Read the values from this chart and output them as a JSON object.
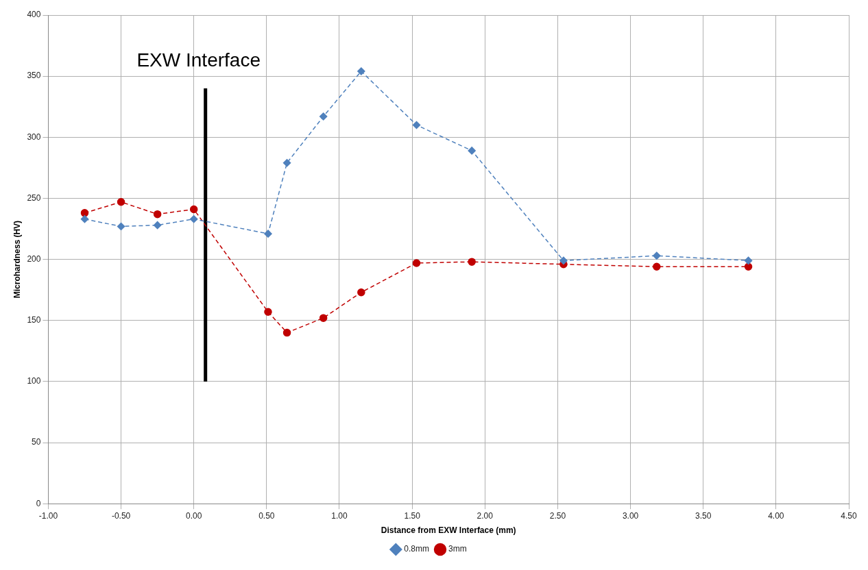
{
  "chart_data": {
    "type": "line",
    "xlabel": "Distance from EXW Interface (mm)",
    "ylabel": "Microhardness (HV)",
    "x": [
      -0.75,
      -0.5,
      -0.25,
      0,
      0.51,
      0.64,
      0.89,
      1.15,
      1.53,
      1.91,
      2.54,
      3.18,
      3.81
    ],
    "series": [
      {
        "name": "0.8mm",
        "color": "#4f81bd",
        "marker": "diamond",
        "line_style": "dashed",
        "values": [
          233,
          227,
          228,
          233,
          221,
          279,
          317,
          354,
          310,
          289,
          199,
          203,
          199
        ]
      },
      {
        "name": "3mm",
        "color": "#c00000",
        "marker": "circle",
        "line_style": "dashed",
        "values": [
          238,
          247,
          237,
          241,
          157,
          140,
          152,
          173,
          197,
          198,
          196,
          194,
          194
        ]
      },
      {
        "color": "#000000",
        "marker": "none",
        "line_style": "solid",
        "x": [
          0.08,
          0.08
        ],
        "values": [
          100,
          340
        ]
      }
    ],
    "annotations": [
      "EXW Interface"
    ],
    "xlim": [
      -1,
      4.5
    ],
    "xticks": [
      {
        "value": -1,
        "label": "-1.00"
      },
      {
        "value": -0.5,
        "label": "-0.50"
      },
      {
        "value": 0,
        "label": "0.00"
      },
      {
        "value": 0.5,
        "label": "0.50"
      },
      {
        "value": 1,
        "label": "1.00"
      },
      {
        "value": 1.5,
        "label": "1.50"
      },
      {
        "value": 2,
        "label": "2.00"
      },
      {
        "value": 2.5,
        "label": "2.50"
      },
      {
        "value": 3,
        "label": "3.00"
      },
      {
        "value": 3.5,
        "label": "3.50"
      },
      {
        "value": 4,
        "label": "4.00"
      },
      {
        "value": 4.5,
        "label": "4.50"
      }
    ],
    "ylim": [
      0,
      400
    ],
    "yticks": [
      0,
      50,
      100,
      150,
      200,
      250,
      300,
      350,
      400
    ],
    "grid": true,
    "legend": "bottom"
  }
}
